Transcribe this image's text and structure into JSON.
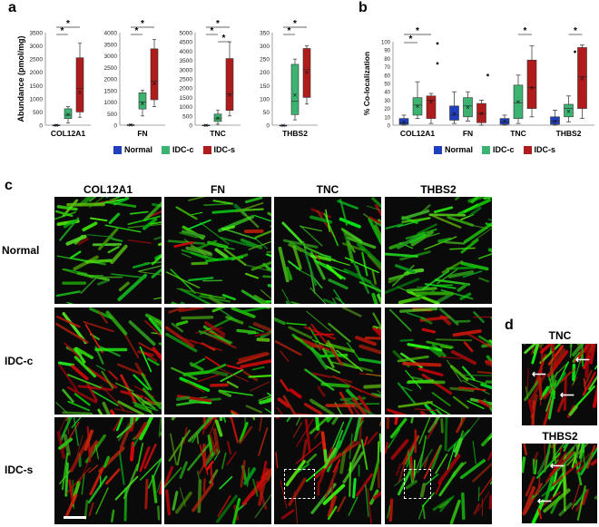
{
  "panel_labels": {
    "a": "a",
    "b": "b",
    "c": "c",
    "d": "d"
  },
  "colors": {
    "normal": "#1f3fbf",
    "idc_c": "#3cb371",
    "idc_s": "#b01c1c"
  },
  "legend": [
    {
      "label": "Normal",
      "color": "#1f3fbf"
    },
    {
      "label": "IDC-c",
      "color": "#3cb371"
    },
    {
      "label": "IDC-s",
      "color": "#b01c1c"
    }
  ],
  "chart_data": [
    {
      "type": "boxplot",
      "panel": "a",
      "ylabel": "Abundance (pmol/mg)",
      "subplots": [
        {
          "name": "COL12A1",
          "ylim": [
            0,
            3500
          ],
          "ticks": [
            0,
            500,
            1000,
            1500,
            2000,
            2500,
            3000,
            3500
          ],
          "boxes": [
            {
              "group": "Normal",
              "min": 0,
              "q1": 0,
              "median": 0,
              "q3": 10,
              "max": 20,
              "mean": 5
            },
            {
              "group": "IDC-c",
              "min": 80,
              "q1": 250,
              "median": 380,
              "q3": 620,
              "max": 700,
              "mean": 420
            },
            {
              "group": "IDC-s",
              "min": 300,
              "q1": 500,
              "median": 1400,
              "q3": 2550,
              "max": 3100,
              "mean": 1250
            }
          ],
          "sig": [
            "*",
            "*"
          ]
        },
        {
          "name": "FN",
          "ylim": [
            0,
            4000
          ],
          "ticks": [
            0,
            500,
            1000,
            1500,
            2000,
            2500,
            3000,
            3500,
            4000
          ],
          "boxes": [
            {
              "group": "Normal",
              "min": 0,
              "q1": 0,
              "median": 0,
              "q3": 20,
              "max": 40,
              "mean": 10
            },
            {
              "group": "IDC-c",
              "min": 400,
              "q1": 700,
              "median": 1000,
              "q3": 1400,
              "max": 1500,
              "mean": 950
            },
            {
              "group": "IDC-s",
              "min": 800,
              "q1": 1100,
              "median": 1900,
              "q3": 3300,
              "max": 3700,
              "mean": 1800
            }
          ],
          "sig": [
            "*",
            "*"
          ]
        },
        {
          "name": "TNC",
          "ylim": [
            0,
            5000
          ],
          "ticks": [
            0,
            500,
            1000,
            1500,
            2000,
            2500,
            3000,
            3500,
            4000,
            4500,
            5000
          ],
          "boxes": [
            {
              "group": "Normal",
              "min": 0,
              "q1": 0,
              "median": 0,
              "q3": 10,
              "max": 20,
              "mean": 5
            },
            {
              "group": "IDC-c",
              "min": 50,
              "q1": 200,
              "median": 350,
              "q3": 600,
              "max": 800,
              "mean": 380
            },
            {
              "group": "IDC-s",
              "min": 500,
              "q1": 800,
              "median": 1700,
              "q3": 3600,
              "max": 4500,
              "mean": 1650
            }
          ],
          "sig": [
            "*",
            "*",
            "*"
          ]
        },
        {
          "name": "THBS2",
          "ylim": [
            0,
            350
          ],
          "ticks": [
            0,
            50,
            100,
            150,
            200,
            250,
            300,
            350
          ],
          "boxes": [
            {
              "group": "Normal",
              "min": 0,
              "q1": 0,
              "median": 0,
              "q3": 0,
              "max": 0,
              "mean": 0
            },
            {
              "group": "IDC-c",
              "min": 20,
              "q1": 40,
              "median": 90,
              "q3": 230,
              "max": 250,
              "mean": 115
            },
            {
              "group": "IDC-s",
              "min": 80,
              "q1": 105,
              "median": 210,
              "q3": 290,
              "max": 300,
              "mean": 200
            }
          ],
          "sig": [
            "*",
            "*"
          ]
        }
      ]
    },
    {
      "type": "boxplot",
      "panel": "b",
      "ylabel": "% Co-localization",
      "ylim": [
        0,
        100
      ],
      "ticks": [
        0,
        10,
        20,
        30,
        40,
        50,
        60,
        70,
        80,
        90,
        100
      ],
      "groups": [
        {
          "name": "COL12A1",
          "boxes": [
            {
              "group": "Normal",
              "min": 0,
              "q1": 1,
              "median": 3,
              "q3": 8,
              "max": 12,
              "mean": 4
            },
            {
              "group": "IDC-c",
              "min": 8,
              "q1": 12,
              "median": 24,
              "q3": 33,
              "max": 52,
              "mean": 23
            },
            {
              "group": "IDC-s",
              "min": 2,
              "q1": 8,
              "median": 30,
              "q3": 35,
              "max": 38,
              "mean": 28,
              "outliers": [
                98,
                74
              ]
            }
          ],
          "sig": [
            "*",
            "*"
          ]
        },
        {
          "name": "FN",
          "boxes": [
            {
              "group": "Normal",
              "min": 2,
              "q1": 6,
              "median": 12,
              "q3": 23,
              "max": 40,
              "mean": 14
            },
            {
              "group": "IDC-c",
              "min": 5,
              "q1": 10,
              "median": 23,
              "q3": 33,
              "max": 40,
              "mean": 22
            },
            {
              "group": "IDC-s",
              "min": 0,
              "q1": 3,
              "median": 14,
              "q3": 26,
              "max": 30,
              "mean": 14,
              "outliers": [
                60
              ]
            }
          ],
          "sig": []
        },
        {
          "name": "TNC",
          "boxes": [
            {
              "group": "Normal",
              "min": 0,
              "q1": 1,
              "median": 4,
              "q3": 8,
              "max": 12,
              "mean": 5
            },
            {
              "group": "IDC-c",
              "min": 2,
              "q1": 8,
              "median": 27,
              "q3": 48,
              "max": 60,
              "mean": 28
            },
            {
              "group": "IDC-s",
              "min": 10,
              "q1": 20,
              "median": 45,
              "q3": 78,
              "max": 95,
              "mean": 45
            }
          ],
          "sig": [
            "*"
          ]
        },
        {
          "name": "THBS2",
          "boxes": [
            {
              "group": "Normal",
              "min": 0,
              "q1": 1,
              "median": 5,
              "q3": 10,
              "max": 18,
              "mean": 5
            },
            {
              "group": "IDC-c",
              "min": 4,
              "q1": 10,
              "median": 20,
              "q3": 25,
              "max": 35,
              "mean": 17,
              "outliers": [
                88
              ]
            },
            {
              "group": "IDC-s",
              "min": 8,
              "q1": 20,
              "median": 58,
              "q3": 93,
              "max": 96,
              "mean": 56
            }
          ],
          "sig": [
            "*"
          ]
        }
      ]
    }
  ],
  "panel_c": {
    "columns": [
      "COL12A1",
      "FN",
      "TNC",
      "THBS2"
    ],
    "rows": [
      "Normal",
      "IDC-c",
      "IDC-s"
    ]
  },
  "panel_d": {
    "titles": [
      "TNC",
      "THBS2"
    ]
  }
}
